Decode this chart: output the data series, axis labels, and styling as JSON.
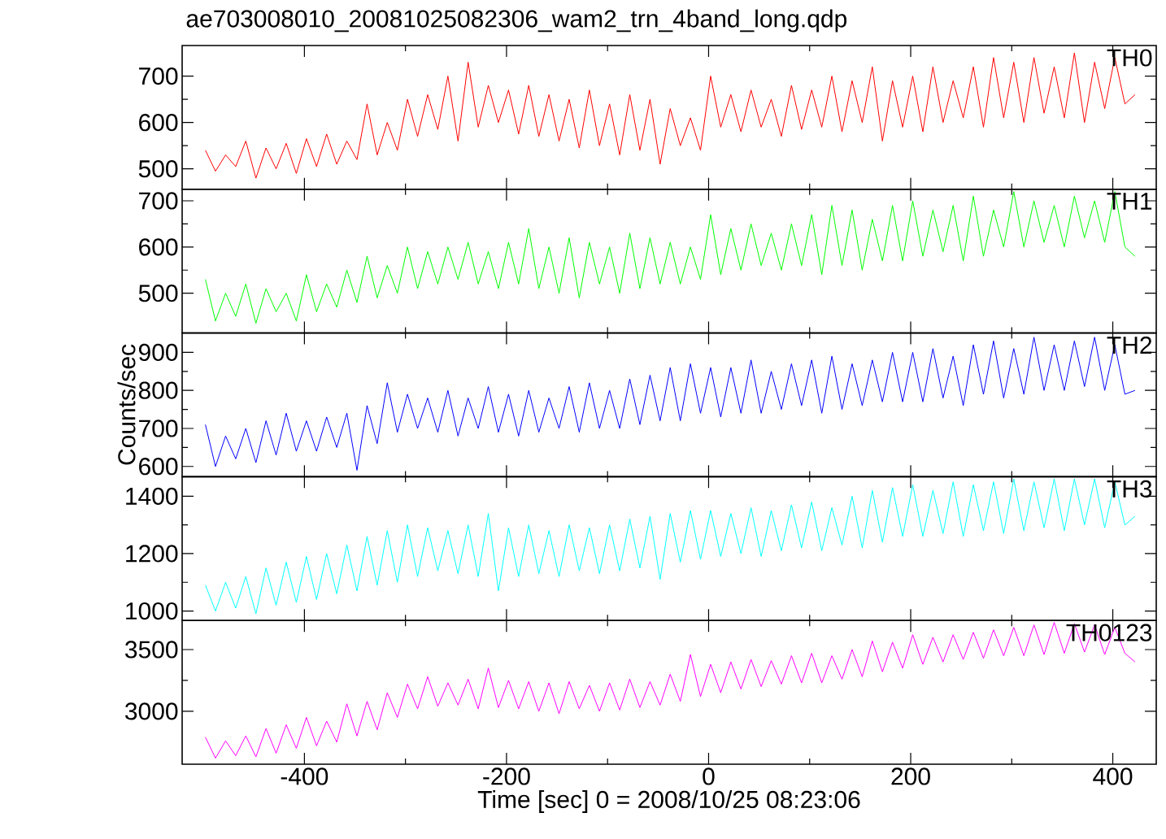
{
  "chart_data": [
    {
      "type": "line",
      "title": "ae703008010_20081025082306_wam2_trn_4band_long.qdp",
      "annotations": [
        "TH0"
      ],
      "xlim": [
        -521,
        443
      ],
      "ylim": [
        456,
        766
      ],
      "xticks": [
        -400,
        -200,
        0,
        200,
        400
      ],
      "yticks": [
        500,
        600,
        700
      ],
      "tick_labels": "y",
      "x": [
        -498,
        -488,
        -478,
        -468,
        -458,
        -448,
        -438,
        -428,
        -418,
        -408,
        -398,
        -388,
        -378,
        -368,
        -358,
        -348,
        -338,
        -328,
        -318,
        -308,
        -298,
        -288,
        -278,
        -268,
        -258,
        -248,
        -238,
        -228,
        -218,
        -208,
        -198,
        -188,
        -178,
        -168,
        -158,
        -148,
        -138,
        -128,
        -118,
        -108,
        -98,
        -88,
        -78,
        -68,
        -58,
        -48,
        -38,
        -28,
        -18,
        -8,
        2,
        12,
        22,
        32,
        42,
        52,
        62,
        72,
        82,
        92,
        102,
        112,
        122,
        132,
        142,
        152,
        162,
        172,
        182,
        192,
        202,
        212,
        222,
        232,
        242,
        252,
        262,
        272,
        282,
        292,
        302,
        312,
        322,
        332,
        342,
        352,
        362,
        372,
        382,
        392,
        402,
        412,
        422
      ],
      "series": [
        {
          "color": "#ff0000",
          "values": [
            540,
            495,
            530,
            505,
            560,
            480,
            545,
            500,
            555,
            490,
            565,
            505,
            575,
            510,
            560,
            520,
            640,
            530,
            600,
            540,
            650,
            570,
            660,
            585,
            700,
            560,
            730,
            590,
            680,
            600,
            670,
            575,
            680,
            570,
            660,
            560,
            650,
            545,
            670,
            550,
            640,
            530,
            660,
            540,
            650,
            510,
            630,
            550,
            610,
            540,
            700,
            590,
            660,
            580,
            670,
            590,
            650,
            570,
            680,
            585,
            670,
            590,
            700,
            580,
            690,
            600,
            720,
            560,
            690,
            590,
            700,
            580,
            720,
            600,
            690,
            610,
            720,
            590,
            740,
            610,
            730,
            600,
            740,
            620,
            720,
            610,
            750,
            600,
            730,
            630,
            740,
            640,
            660
          ]
        }
      ]
    },
    {
      "type": "line",
      "annotations": [
        "TH1"
      ],
      "xlim": [
        -521,
        443
      ],
      "ylim": [
        414,
        725
      ],
      "xticks": [
        -400,
        -200,
        0,
        200,
        400
      ],
      "yticks": [
        500,
        600,
        700
      ],
      "tick_labels": "y",
      "x": [
        -498,
        -488,
        -478,
        -468,
        -458,
        -448,
        -438,
        -428,
        -418,
        -408,
        -398,
        -388,
        -378,
        -368,
        -358,
        -348,
        -338,
        -328,
        -318,
        -308,
        -298,
        -288,
        -278,
        -268,
        -258,
        -248,
        -238,
        -228,
        -218,
        -208,
        -198,
        -188,
        -178,
        -168,
        -158,
        -148,
        -138,
        -128,
        -118,
        -108,
        -98,
        -88,
        -78,
        -68,
        -58,
        -48,
        -38,
        -28,
        -18,
        -8,
        2,
        12,
        22,
        32,
        42,
        52,
        62,
        72,
        82,
        92,
        102,
        112,
        122,
        132,
        142,
        152,
        162,
        172,
        182,
        192,
        202,
        212,
        222,
        232,
        242,
        252,
        262,
        272,
        282,
        292,
        302,
        312,
        322,
        332,
        342,
        352,
        362,
        372,
        382,
        392,
        402,
        412,
        422
      ],
      "series": [
        {
          "color": "#00ff00",
          "values": [
            530,
            440,
            500,
            450,
            520,
            435,
            510,
            460,
            500,
            440,
            540,
            460,
            520,
            470,
            550,
            480,
            580,
            490,
            560,
            500,
            600,
            510,
            590,
            520,
            600,
            530,
            610,
            520,
            590,
            510,
            610,
            520,
            640,
            510,
            600,
            500,
            620,
            490,
            610,
            520,
            600,
            500,
            630,
            510,
            620,
            520,
            610,
            520,
            600,
            530,
            670,
            540,
            640,
            550,
            650,
            560,
            630,
            550,
            650,
            560,
            670,
            540,
            690,
            560,
            680,
            550,
            660,
            570,
            690,
            570,
            700,
            580,
            680,
            590,
            690,
            570,
            710,
            580,
            680,
            600,
            720,
            600,
            700,
            610,
            690,
            600,
            710,
            620,
            700,
            610,
            720,
            600,
            580
          ]
        }
      ]
    },
    {
      "type": "line",
      "annotations": [
        "TH2"
      ],
      "ylabel": "Counts/sec",
      "xlim": [
        -521,
        443
      ],
      "ylim": [
        573,
        951
      ],
      "xticks": [
        -400,
        -200,
        0,
        200,
        400
      ],
      "yticks": [
        600,
        700,
        800,
        900
      ],
      "tick_labels": "y",
      "x": [
        -498,
        -488,
        -478,
        -468,
        -458,
        -448,
        -438,
        -428,
        -418,
        -408,
        -398,
        -388,
        -378,
        -368,
        -358,
        -348,
        -338,
        -328,
        -318,
        -308,
        -298,
        -288,
        -278,
        -268,
        -258,
        -248,
        -238,
        -228,
        -218,
        -208,
        -198,
        -188,
        -178,
        -168,
        -158,
        -148,
        -138,
        -128,
        -118,
        -108,
        -98,
        -88,
        -78,
        -68,
        -58,
        -48,
        -38,
        -28,
        -18,
        -8,
        2,
        12,
        22,
        32,
        42,
        52,
        62,
        72,
        82,
        92,
        102,
        112,
        122,
        132,
        142,
        152,
        162,
        172,
        182,
        192,
        202,
        212,
        222,
        232,
        242,
        252,
        262,
        272,
        282,
        292,
        302,
        312,
        322,
        332,
        342,
        352,
        362,
        372,
        382,
        392,
        402,
        412,
        422
      ],
      "series": [
        {
          "color": "#0000ff",
          "values": [
            710,
            600,
            680,
            620,
            700,
            610,
            720,
            630,
            740,
            640,
            720,
            640,
            730,
            650,
            740,
            590,
            760,
            660,
            820,
            690,
            790,
            700,
            780,
            690,
            800,
            680,
            780,
            700,
            810,
            690,
            790,
            680,
            800,
            690,
            780,
            700,
            810,
            690,
            820,
            700,
            800,
            700,
            830,
            710,
            840,
            720,
            860,
            720,
            870,
            740,
            860,
            730,
            860,
            740,
            880,
            740,
            850,
            750,
            870,
            760,
            880,
            740,
            890,
            750,
            870,
            760,
            880,
            770,
            900,
            770,
            900,
            770,
            910,
            780,
            890,
            760,
            920,
            790,
            930,
            780,
            910,
            790,
            940,
            800,
            920,
            800,
            930,
            810,
            940,
            800,
            920,
            790,
            800
          ]
        }
      ]
    },
    {
      "type": "line",
      "annotations": [
        "TH3"
      ],
      "xlim": [
        -521,
        443
      ],
      "ylim": [
        967,
        1468
      ],
      "xticks": [
        -400,
        -200,
        0,
        200,
        400
      ],
      "yticks": [
        1000,
        1200,
        1400
      ],
      "tick_labels": "y",
      "x": [
        -498,
        -488,
        -478,
        -468,
        -458,
        -448,
        -438,
        -428,
        -418,
        -408,
        -398,
        -388,
        -378,
        -368,
        -358,
        -348,
        -338,
        -328,
        -318,
        -308,
        -298,
        -288,
        -278,
        -268,
        -258,
        -248,
        -238,
        -228,
        -218,
        -208,
        -198,
        -188,
        -178,
        -168,
        -158,
        -148,
        -138,
        -128,
        -118,
        -108,
        -98,
        -88,
        -78,
        -68,
        -58,
        -48,
        -38,
        -28,
        -18,
        -8,
        2,
        12,
        22,
        32,
        42,
        52,
        62,
        72,
        82,
        92,
        102,
        112,
        122,
        132,
        142,
        152,
        162,
        172,
        182,
        192,
        202,
        212,
        222,
        232,
        242,
        252,
        262,
        272,
        282,
        292,
        302,
        312,
        322,
        332,
        342,
        352,
        362,
        372,
        382,
        392,
        402,
        412,
        422
      ],
      "series": [
        {
          "color": "#00ffff",
          "values": [
            1090,
            1000,
            1100,
            1010,
            1120,
            990,
            1150,
            1020,
            1170,
            1030,
            1190,
            1040,
            1200,
            1060,
            1230,
            1070,
            1260,
            1090,
            1280,
            1100,
            1300,
            1120,
            1290,
            1140,
            1280,
            1130,
            1300,
            1120,
            1340,
            1070,
            1290,
            1120,
            1300,
            1130,
            1280,
            1120,
            1300,
            1140,
            1290,
            1130,
            1300,
            1140,
            1320,
            1150,
            1330,
            1110,
            1340,
            1170,
            1350,
            1180,
            1350,
            1190,
            1340,
            1200,
            1360,
            1190,
            1350,
            1210,
            1370,
            1220,
            1380,
            1210,
            1360,
            1230,
            1400,
            1220,
            1420,
            1240,
            1430,
            1260,
            1440,
            1260,
            1420,
            1270,
            1450,
            1260,
            1440,
            1280,
            1450,
            1270,
            1460,
            1280,
            1450,
            1290,
            1460,
            1280,
            1460,
            1300,
            1460,
            1290,
            1450,
            1300,
            1330
          ]
        }
      ]
    },
    {
      "type": "line",
      "annotations": [
        "TH0123"
      ],
      "xlabel": "Time [sec] 0 = 2008/10/25 08:23:06",
      "xlim": [
        -521,
        443
      ],
      "ylim": [
        2571,
        3736
      ],
      "xticks": [
        -400,
        -200,
        0,
        200,
        400
      ],
      "yticks": [
        3000,
        3500
      ],
      "x": [
        -498,
        -488,
        -478,
        -468,
        -458,
        -448,
        -438,
        -428,
        -418,
        -408,
        -398,
        -388,
        -378,
        -368,
        -358,
        -348,
        -338,
        -328,
        -318,
        -308,
        -298,
        -288,
        -278,
        -268,
        -258,
        -248,
        -238,
        -228,
        -218,
        -208,
        -198,
        -188,
        -178,
        -168,
        -158,
        -148,
        -138,
        -128,
        -118,
        -108,
        -98,
        -88,
        -78,
        -68,
        -58,
        -48,
        -38,
        -28,
        -18,
        -8,
        2,
        12,
        22,
        32,
        42,
        52,
        62,
        72,
        82,
        92,
        102,
        112,
        122,
        132,
        142,
        152,
        162,
        172,
        182,
        192,
        202,
        212,
        222,
        232,
        242,
        252,
        262,
        272,
        282,
        292,
        302,
        312,
        322,
        332,
        342,
        352,
        362,
        372,
        382,
        392,
        402,
        412,
        422
      ],
      "series": [
        {
          "color": "#ff00ff",
          "values": [
            2790,
            2620,
            2760,
            2640,
            2800,
            2630,
            2860,
            2660,
            2890,
            2700,
            2950,
            2720,
            2920,
            2750,
            3060,
            2800,
            3080,
            2850,
            3150,
            2950,
            3220,
            3020,
            3280,
            3040,
            3230,
            3050,
            3260,
            3020,
            3350,
            3030,
            3250,
            3020,
            3240,
            3000,
            3230,
            2980,
            3240,
            3020,
            3210,
            3000,
            3230,
            3010,
            3260,
            3030,
            3240,
            3050,
            3300,
            3080,
            3460,
            3120,
            3380,
            3150,
            3400,
            3180,
            3420,
            3200,
            3410,
            3220,
            3450,
            3230,
            3470,
            3230,
            3450,
            3260,
            3500,
            3280,
            3570,
            3320,
            3560,
            3350,
            3620,
            3380,
            3600,
            3400,
            3620,
            3420,
            3640,
            3430,
            3660,
            3450,
            3680,
            3450,
            3700,
            3460,
            3720,
            3470,
            3710,
            3480,
            3700,
            3460,
            3680,
            3470,
            3400
          ]
        }
      ]
    }
  ]
}
